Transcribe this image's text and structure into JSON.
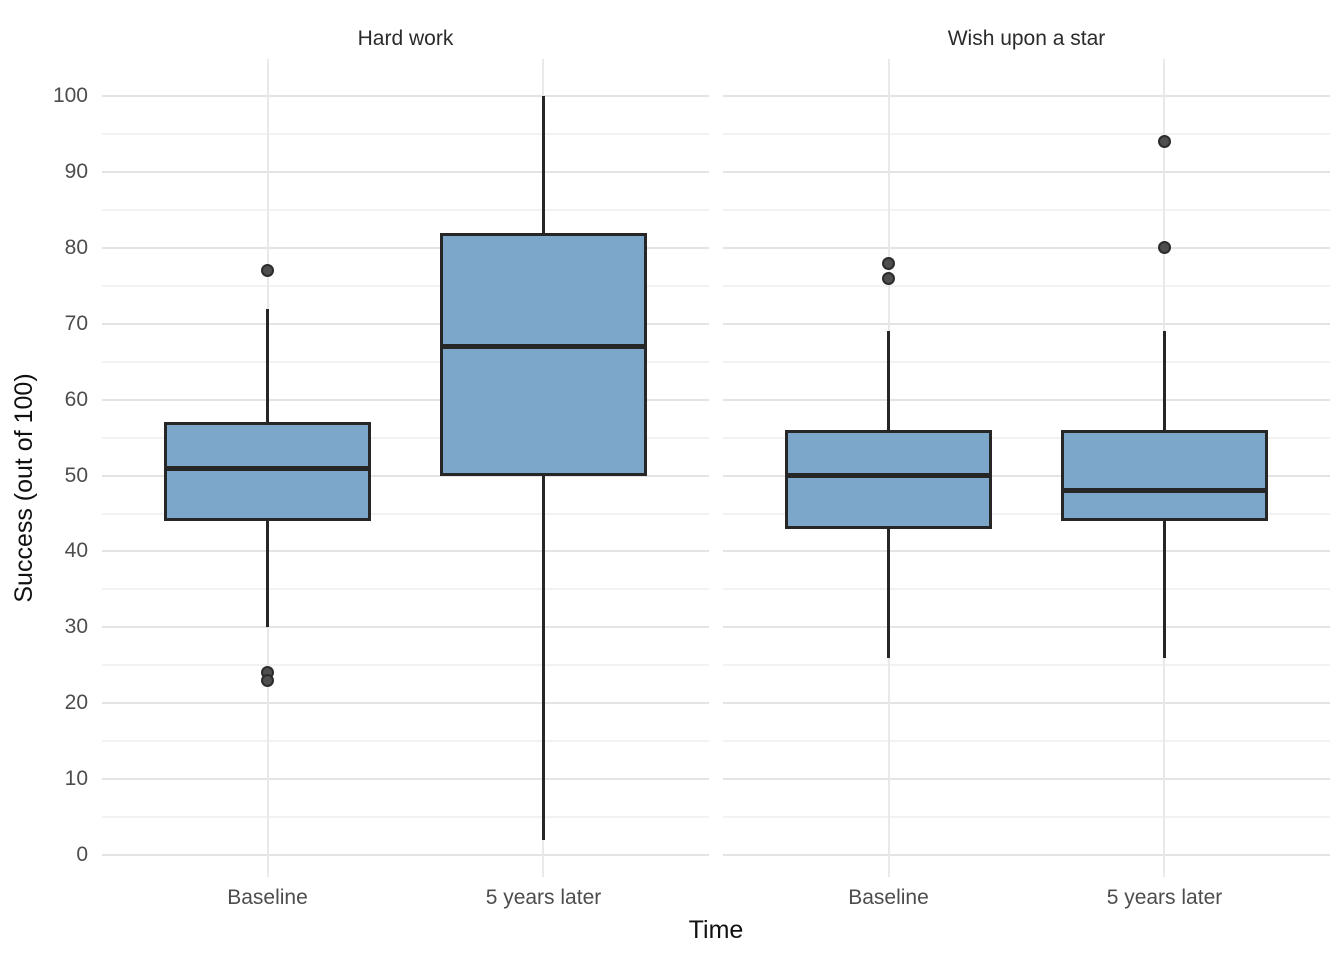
{
  "chart_data": {
    "type": "boxplot",
    "title": "",
    "xlabel": "Time",
    "ylabel": "Success (out of 100)",
    "ylim": [
      0,
      100
    ],
    "y_ticks": [
      0,
      10,
      20,
      30,
      40,
      50,
      60,
      70,
      80,
      90,
      100
    ],
    "x_categories": [
      "Baseline",
      "5 years later"
    ],
    "grid": "horizontal major+minor, vertical at categories",
    "legend": "none",
    "facets": [
      {
        "label": "Hard work",
        "boxes": [
          {
            "category": "Baseline",
            "whisker_low": 30,
            "q1": 44,
            "median": 51,
            "q3": 57,
            "whisker_high": 72,
            "outliers": [
              77,
              24,
              23
            ]
          },
          {
            "category": "5 years later",
            "whisker_low": 2,
            "q1": 50,
            "median": 67,
            "q3": 82,
            "whisker_high": 100,
            "outliers": []
          }
        ]
      },
      {
        "label": "Wish upon a star",
        "boxes": [
          {
            "category": "Baseline",
            "whisker_low": 26,
            "q1": 43,
            "median": 50,
            "q3": 56,
            "whisker_high": 69,
            "outliers": [
              78,
              76
            ]
          },
          {
            "category": "5 years later",
            "whisker_low": 26,
            "q1": 44,
            "median": 48,
            "q3": 56,
            "whisker_high": 69,
            "outliers": [
              94,
              80
            ]
          }
        ]
      }
    ],
    "colors": {
      "box_fill": "#7da7ca",
      "box_stroke": "#262626",
      "outlier_fill": "#4e4e4e",
      "grid_major": "#e4e4e4",
      "grid_minor": "#f2f2f2",
      "tick_text": "#4d4d4d",
      "title_text": "#111111"
    }
  }
}
